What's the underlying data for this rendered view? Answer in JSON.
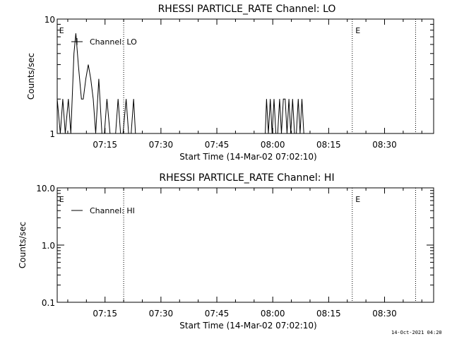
{
  "footer_stamp": "14-Oct-2021 04:20",
  "chart_data": [
    {
      "type": "line",
      "title": "RHESSI PARTICLE_RATE Channel: LO",
      "xlabel": "Start Time (14-Mar-02 07:02:10)",
      "ylabel": "Counts/sec",
      "yscale": "log",
      "ylim": [
        1,
        10
      ],
      "ytick_labels": [
        {
          "value": 1,
          "label": "1"
        },
        {
          "value": 10,
          "label": "10"
        }
      ],
      "xlim": [
        "07:02:10",
        "08:43:10"
      ],
      "xtick_labels": [
        {
          "value": "07:15",
          "label": "07:15"
        },
        {
          "value": "07:30",
          "label": "07:30"
        },
        {
          "value": "07:45",
          "label": "07:45"
        },
        {
          "value": "08:00",
          "label": "08:00"
        },
        {
          "value": "08:15",
          "label": "08:15"
        },
        {
          "value": "08:30",
          "label": "08:30"
        }
      ],
      "xminor_ticks": [
        "07:05",
        "07:10",
        "07:20",
        "07:25",
        "07:35",
        "07:40",
        "07:50",
        "07:55",
        "08:05",
        "08:10",
        "08:20",
        "08:25",
        "08:35",
        "08:40"
      ],
      "vlines": [
        "07:20:00",
        "08:21:20",
        "08:38:20"
      ],
      "markers": [
        {
          "x": "07:02:30",
          "label": "E"
        },
        {
          "x": "08:22:00",
          "label": "E"
        }
      ],
      "legend": {
        "label": "Channel: LO",
        "placement": "top-left",
        "symbol": "plus"
      },
      "series": [
        {
          "name": "Channel: LO",
          "x": [
            "07:02:10",
            "07:03:00",
            "07:03:40",
            "07:04:20",
            "07:05:10",
            "07:05:50",
            "07:06:40",
            "07:07:10",
            "07:07:50",
            "07:08:40",
            "07:09:10",
            "07:09:50",
            "07:10:30",
            "07:11:10",
            "07:11:50",
            "07:12:30",
            "07:13:20",
            "07:14:10",
            "07:14:50",
            "07:15:30",
            "07:16:20",
            "07:17:00",
            "07:17:50",
            "07:18:30",
            "07:19:10",
            "07:19:50",
            "07:20:40",
            "07:21:20",
            "07:22:00",
            "07:22:40",
            "07:23:10",
            "07:58:00",
            "07:58:20",
            "07:58:50",
            "07:59:20",
            "07:59:50",
            "08:00:20",
            "08:00:50",
            "08:01:20",
            "08:01:50",
            "08:02:20",
            "08:02:50",
            "08:03:20",
            "08:03:50",
            "08:04:20",
            "08:04:50",
            "08:05:20",
            "08:05:50",
            "08:06:20",
            "08:06:50",
            "08:07:20",
            "08:07:50",
            "08:08:20"
          ],
          "y": [
            2,
            1,
            2,
            1,
            2,
            1,
            5,
            7.5,
            4,
            2,
            2,
            3,
            4,
            3,
            2,
            1,
            3,
            1,
            1,
            2,
            1,
            1,
            1,
            2,
            1,
            1,
            2,
            1,
            1,
            2,
            1,
            1,
            2,
            1,
            2,
            1,
            2,
            1,
            1,
            2,
            1,
            2,
            2,
            1,
            2,
            1,
            2,
            1,
            1,
            2,
            1,
            2,
            1
          ]
        }
      ]
    },
    {
      "type": "line",
      "title": "RHESSI PARTICLE_RATE Channel: HI",
      "xlabel": "Start Time (14-Mar-02 07:02:10)",
      "ylabel": "Counts/sec",
      "yscale": "log",
      "ylim": [
        0.1,
        10
      ],
      "ytick_labels": [
        {
          "value": 0.1,
          "label": "0.1"
        },
        {
          "value": 1,
          "label": "1.0"
        },
        {
          "value": 10,
          "label": "10.0"
        }
      ],
      "xlim": [
        "07:02:10",
        "08:43:10"
      ],
      "xtick_labels": [
        {
          "value": "07:15",
          "label": "07:15"
        },
        {
          "value": "07:30",
          "label": "07:30"
        },
        {
          "value": "07:45",
          "label": "07:45"
        },
        {
          "value": "08:00",
          "label": "08:00"
        },
        {
          "value": "08:15",
          "label": "08:15"
        },
        {
          "value": "08:30",
          "label": "08:30"
        }
      ],
      "xminor_ticks": [
        "07:05",
        "07:10",
        "07:20",
        "07:25",
        "07:35",
        "07:40",
        "07:50",
        "07:55",
        "08:05",
        "08:10",
        "08:20",
        "08:25",
        "08:35",
        "08:40"
      ],
      "vlines": [
        "07:20:00",
        "08:21:20",
        "08:38:20"
      ],
      "markers": [
        {
          "x": "07:02:30",
          "label": "E"
        },
        {
          "x": "08:22:00",
          "label": "E"
        }
      ],
      "legend": {
        "label": "Channel: HI",
        "placement": "top-left",
        "symbol": "line"
      },
      "series": [
        {
          "name": "Channel: HI",
          "x": [],
          "y": []
        }
      ]
    }
  ]
}
